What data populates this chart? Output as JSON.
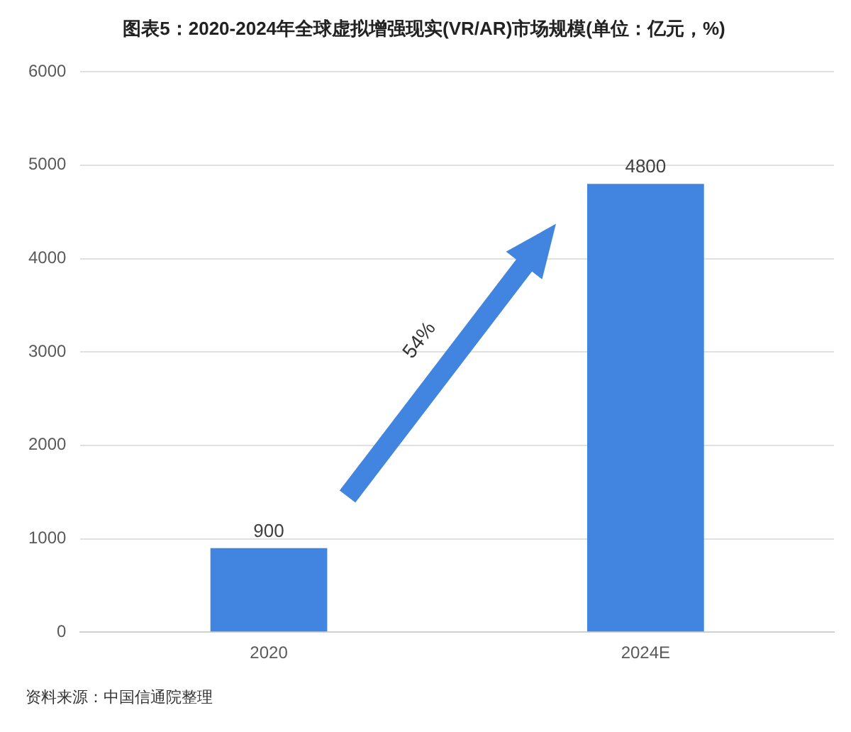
{
  "chart_data": {
    "type": "bar",
    "title": "图表5：2020-2024年全球虚拟增强现实(VR/AR)市场规模(单位：亿元，%)",
    "categories": [
      "2020",
      "2024E"
    ],
    "values": [
      900,
      4800
    ],
    "color": "#4185e0",
    "ylim": [
      0,
      6000
    ],
    "yticks": [
      0,
      1000,
      2000,
      3000,
      4000,
      5000,
      6000
    ],
    "grid": "y",
    "data_labels": true,
    "annotations": [
      "54%",
      "资料来源：中国信通院整理"
    ]
  }
}
